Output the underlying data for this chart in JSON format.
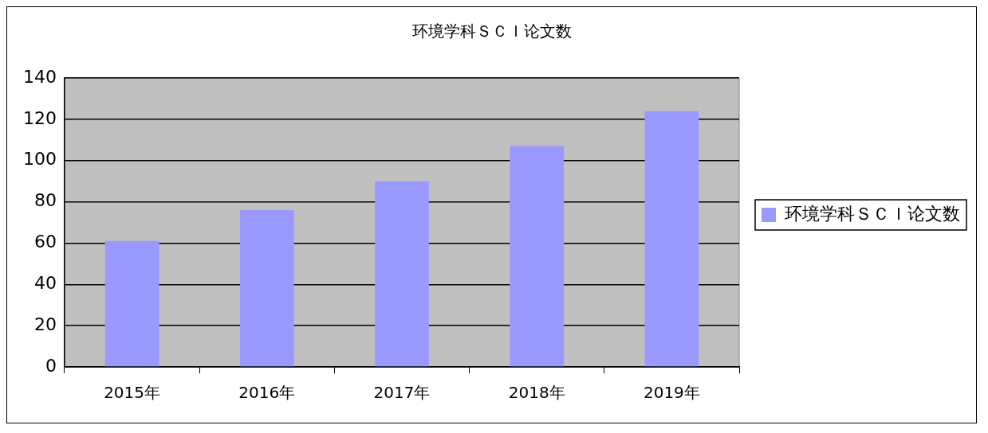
{
  "chart_data": {
    "type": "bar",
    "title": "环境学科ＳＣＩ论文数",
    "categories": [
      "2015年",
      "2016年",
      "2017年",
      "2018年",
      "2019年"
    ],
    "series": [
      {
        "name": "环境学科ＳＣＩ论文数",
        "color": "#9999ff",
        "values": [
          61,
          76,
          90,
          107,
          124
        ]
      }
    ],
    "ylim": [
      0,
      140
    ],
    "yticks": [
      0,
      20,
      40,
      60,
      80,
      100,
      120,
      140
    ],
    "grid": "y",
    "legend": "right"
  }
}
